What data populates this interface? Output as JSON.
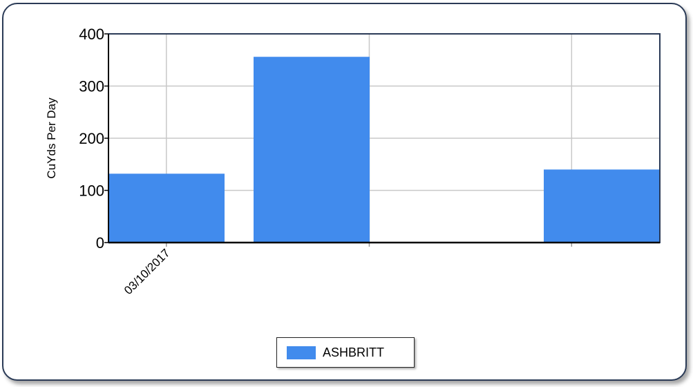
{
  "chart_data": {
    "type": "bar",
    "ylabel": "CuYds Per Day",
    "xlabel": "",
    "ylim": [
      0,
      400
    ],
    "yticks": [
      0,
      100,
      200,
      300,
      400
    ],
    "grid": true,
    "x_tick_labels": [
      "03/10/2017",
      "",
      ""
    ],
    "bars": [
      {
        "value": 132
      },
      {
        "value": 356
      },
      {
        "value": 140
      }
    ],
    "series": [
      {
        "name": "ASHBRITT",
        "color": "#418bed"
      }
    ],
    "legend_position": "bottom-center"
  }
}
